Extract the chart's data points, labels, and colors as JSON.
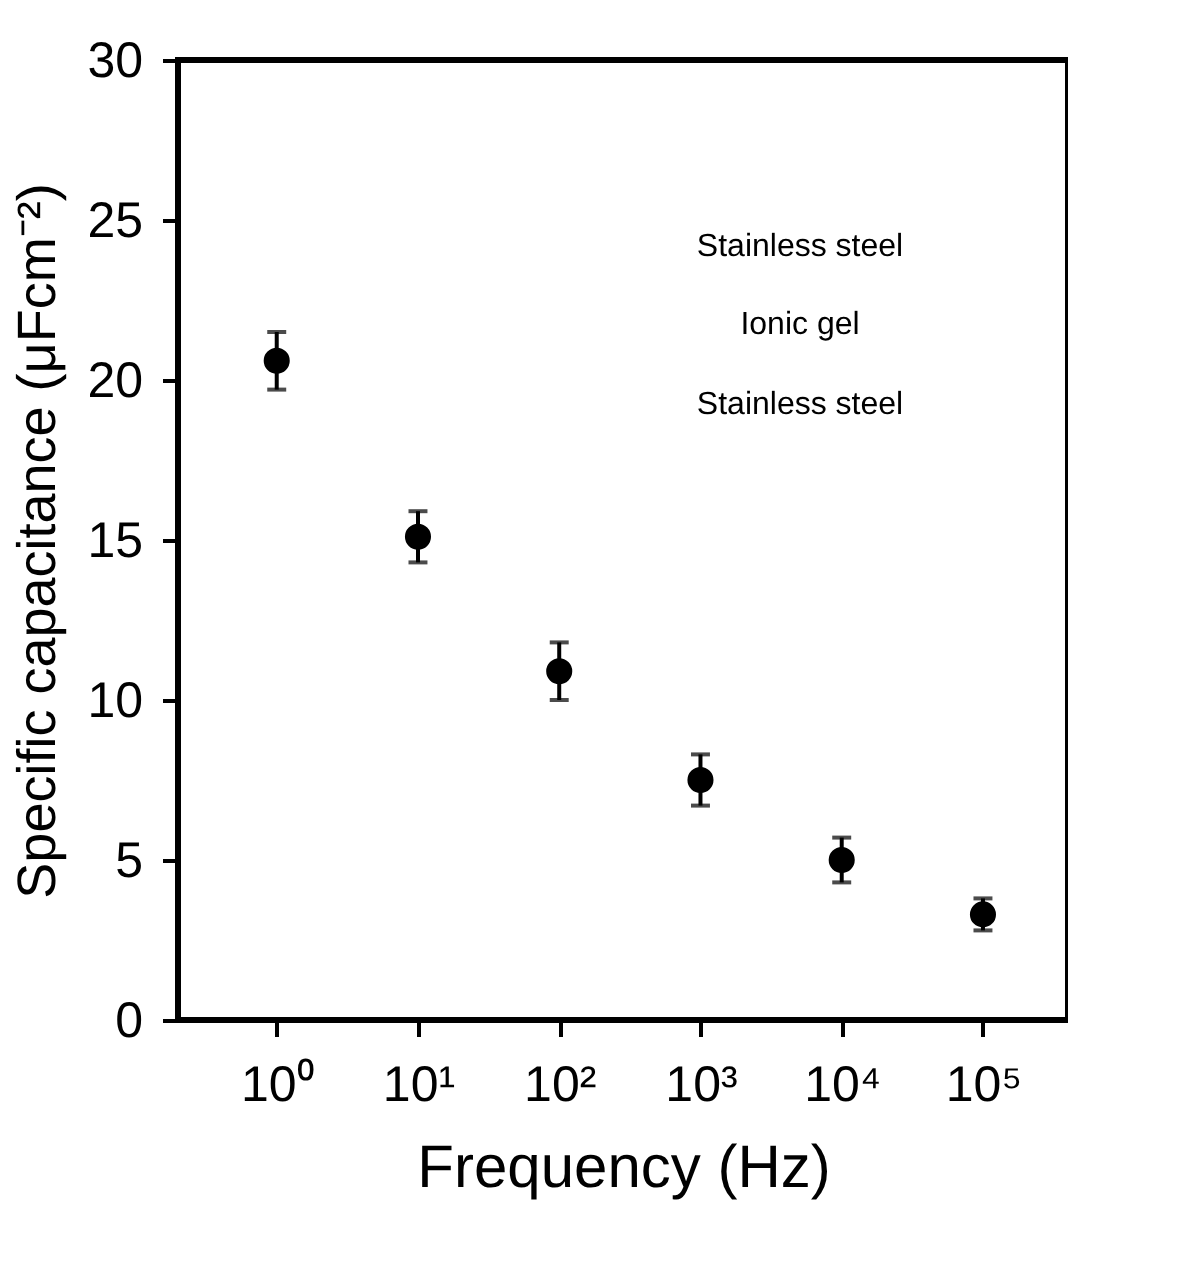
{
  "chart_data": {
    "type": "scatter",
    "xlabel": "Frequency (Hz)",
    "ylabel": "Specific capacitance (μFcm⁻²)",
    "x": [
      1,
      10,
      100,
      1000,
      10000,
      100000
    ],
    "series": [
      {
        "color": "#000000",
        "values": [
          20.6,
          15.1,
          10.9,
          7.5,
          5.0,
          3.3
        ],
        "errors": [
          0.9,
          0.8,
          0.9,
          0.8,
          0.7,
          0.5
        ]
      }
    ],
    "marker": "circle",
    "log": "x",
    "grid": false,
    "xlim": [
      0.2,
      400000
    ],
    "xticks": [
      {
        "value": 1,
        "label": "10⁰"
      },
      {
        "value": 10,
        "label": "10¹"
      },
      {
        "value": 100,
        "label": "10²"
      },
      {
        "value": 1000,
        "label": "10³"
      },
      {
        "value": 10000,
        "label": "10⁴"
      },
      {
        "value": 100000,
        "label": "10⁵"
      }
    ],
    "ylim": [
      0,
      30
    ],
    "yticks": [
      0,
      5,
      10,
      15,
      20,
      25,
      30
    ],
    "annotations": [
      "Stainless steel",
      "Ionic gel",
      "Stainless steel"
    ]
  }
}
